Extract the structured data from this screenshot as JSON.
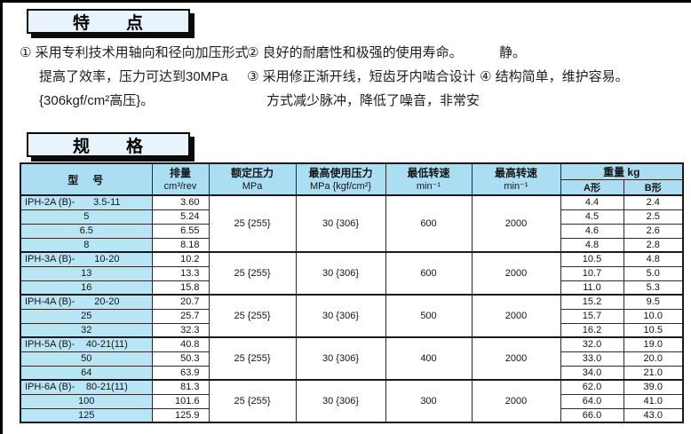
{
  "page": {
    "accent_header_blue": "#abdef2",
    "accent_model_blue": "#b9e6f7",
    "title_box_fill": "#e8f3fb",
    "edge_color": "#000000"
  },
  "features": {
    "title": "特　　点",
    "columns": [
      {
        "lines": [
          {
            "t": "① 采用专利技术用轴向和径向加压形式",
            "ind": false
          },
          {
            "t": "提高了效率，压力可达到30MPa",
            "ind": true
          },
          {
            "t": "{306kgf/cm²高压}。",
            "ind": true
          }
        ]
      },
      {
        "lines": [
          {
            "t": "② 良好的耐磨性和极强的使用寿命。",
            "ind": false
          },
          {
            "t": "③ 采用修正渐开线，短齿牙内啮合设计",
            "ind": false
          },
          {
            "t": "方式减少脉冲，降低了噪音，非常安",
            "ind": true
          }
        ]
      },
      {
        "lines": [
          {
            "t": "静。",
            "ind": true
          },
          {
            "t": "④ 结构简单，维护容易。",
            "ind": false
          }
        ]
      }
    ]
  },
  "specs": {
    "title": "规　　格",
    "table": {
      "headers": {
        "model": "型　号",
        "displacement": {
          "l1": "排量",
          "l2": "cm³/rev"
        },
        "rated_pressure": {
          "l1": "额定压力",
          "l2": "MPa"
        },
        "max_pressure": {
          "l1": "最高使用压力",
          "l2": "MPa {kgf/cm²}"
        },
        "min_speed": {
          "l1": "最低转速",
          "l2": "min⁻¹"
        },
        "max_speed": {
          "l1": "最高转速",
          "l2": "min⁻¹"
        },
        "weight": "重量  kg",
        "weight_a": "A形",
        "weight_b": "B形"
      },
      "groups": [
        {
          "prefix": "IPH-2A (B)-",
          "rated_pressure": "25 {255}",
          "max_pressure": "30 {306}",
          "min_speed": "600",
          "max_speed": "2000",
          "rows": [
            {
              "size": "3.5-11",
              "disp": "3.60",
              "wa": "4.4",
              "wb": "2.4"
            },
            {
              "size": "5",
              "disp": "5.24",
              "wa": "4.5",
              "wb": "2.5"
            },
            {
              "size": "6.5",
              "disp": "6.55",
              "wa": "4.6",
              "wb": "2.6"
            },
            {
              "size": "8",
              "disp": "8.18",
              "wa": "4.8",
              "wb": "2.8"
            }
          ]
        },
        {
          "prefix": "IPH-3A (B)-",
          "rated_pressure": "25 {255}",
          "max_pressure": "30 {306}",
          "min_speed": "600",
          "max_speed": "2000",
          "rows": [
            {
              "size": "10-20",
              "disp": "10.2",
              "wa": "10.5",
              "wb": "4.8"
            },
            {
              "size": "13",
              "disp": "13.3",
              "wa": "10.7",
              "wb": "5.0"
            },
            {
              "size": "16",
              "disp": "15.8",
              "wa": "11.0",
              "wb": "5.3"
            }
          ]
        },
        {
          "prefix": "IPH-4A (B)-",
          "rated_pressure": "25 {255}",
          "max_pressure": "30 {306}",
          "min_speed": "500",
          "max_speed": "2000",
          "rows": [
            {
              "size": "20-20",
              "disp": "20.7",
              "wa": "15.2",
              "wb": "9.5"
            },
            {
              "size": "25",
              "disp": "25.7",
              "wa": "15.7",
              "wb": "10.0"
            },
            {
              "size": "32",
              "disp": "32.3",
              "wa": "16.2",
              "wb": "10.5"
            }
          ]
        },
        {
          "prefix": "IPH-5A (B)-",
          "rated_pressure": "25 {255}",
          "max_pressure": "30 {306}",
          "min_speed": "400",
          "max_speed": "2000",
          "rows": [
            {
              "size": "40-21(11)",
              "disp": "40.8",
              "wa": "32.0",
              "wb": "19.0"
            },
            {
              "size": "50",
              "disp": "50.3",
              "wa": "33.0",
              "wb": "20.0"
            },
            {
              "size": "64",
              "disp": "63.9",
              "wa": "34.0",
              "wb": "21.0"
            }
          ]
        },
        {
          "prefix": "IPH-6A (B)-",
          "rated_pressure": "25 {255}",
          "max_pressure": "30 {306}",
          "min_speed": "300",
          "max_speed": "2000",
          "rows": [
            {
              "size": "80-21(11)",
              "disp": "81.3",
              "wa": "62.0",
              "wb": "39.0"
            },
            {
              "size": "100",
              "disp": "101.6",
              "wa": "64.0",
              "wb": "41.0"
            },
            {
              "size": "125",
              "disp": "125.9",
              "wa": "66.0",
              "wb": "43.0"
            }
          ]
        }
      ]
    }
  }
}
